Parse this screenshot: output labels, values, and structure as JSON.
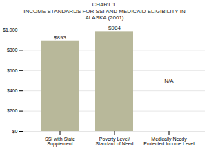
{
  "chart_data": {
    "type": "bar",
    "title": "CHART 1.\nINCOME STANDARDS FOR SSI AND MEDICAID ELIGIBILITY IN\nALASKA (2001)",
    "categories": [
      "SSI with State\nSupplement",
      "Poverty Level/\nStandard of Need",
      "Medically Needy\nProtected Income Level"
    ],
    "values": [
      893,
      984,
      null
    ],
    "value_labels": [
      "$893",
      "$984",
      "N/A"
    ],
    "data_labels": true,
    "color": "#b8b89a",
    "ylim": [
      0,
      1000
    ],
    "yticks": [
      {
        "value": 0,
        "label": "$0"
      },
      {
        "value": 200,
        "label": "$200"
      },
      {
        "value": 400,
        "label": "$400"
      },
      {
        "value": 600,
        "label": "$600"
      },
      {
        "value": 800,
        "label": "$800"
      },
      {
        "value": 1000,
        "label": "$1,000"
      }
    ],
    "grid": true
  }
}
